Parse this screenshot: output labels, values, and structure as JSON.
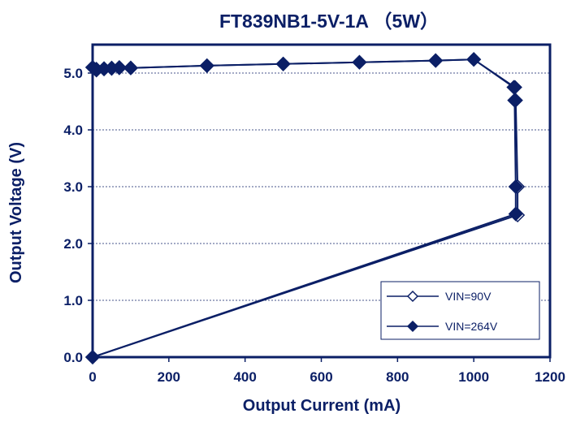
{
  "chart_data": {
    "type": "line",
    "title": "FT839NB1-5V-1A （5W）",
    "xlabel": "Output Current (mA)",
    "ylabel": "Output Voltage (V)",
    "xlim": [
      0,
      1200
    ],
    "ylim": [
      0,
      5.5
    ],
    "xticks": [
      0,
      200,
      400,
      600,
      800,
      1000,
      1200
    ],
    "yticks": [
      0.0,
      1.0,
      2.0,
      3.0,
      4.0,
      5.0
    ],
    "xtick_labels": [
      "0",
      "200",
      "400",
      "600",
      "800",
      "1000",
      "1200"
    ],
    "ytick_labels": [
      "0.0",
      "1.0",
      "2.0",
      "3.0",
      "4.0",
      "5.0"
    ],
    "grid": "horizontal dotted",
    "legend_position": "bottom-right",
    "color": "#0b1f66",
    "series": [
      {
        "name": "VIN=90V",
        "marker": "open-diamond",
        "points": [
          [
            0,
            5.1
          ],
          [
            10,
            5.05
          ],
          [
            30,
            5.07
          ],
          [
            50,
            5.08
          ],
          [
            70,
            5.09
          ],
          [
            100,
            5.09
          ],
          [
            300,
            5.13
          ],
          [
            500,
            5.16
          ],
          [
            700,
            5.19
          ],
          [
            900,
            5.22
          ],
          [
            1000,
            5.24
          ],
          [
            1108,
            4.75
          ],
          [
            1110,
            4.52
          ],
          [
            1115,
            3.0
          ],
          [
            1115,
            2.5
          ],
          [
            0,
            0.0
          ]
        ]
      },
      {
        "name": "VIN=264V",
        "marker": "filled-diamond",
        "points": [
          [
            0,
            5.1
          ],
          [
            10,
            5.07
          ],
          [
            30,
            5.08
          ],
          [
            50,
            5.09
          ],
          [
            70,
            5.1
          ],
          [
            100,
            5.09
          ],
          [
            300,
            5.13
          ],
          [
            500,
            5.16
          ],
          [
            700,
            5.19
          ],
          [
            900,
            5.22
          ],
          [
            1000,
            5.24
          ],
          [
            1105,
            4.75
          ],
          [
            1107,
            4.52
          ],
          [
            1110,
            3.0
          ],
          [
            1110,
            2.52
          ],
          [
            0,
            0.0
          ]
        ]
      }
    ]
  }
}
